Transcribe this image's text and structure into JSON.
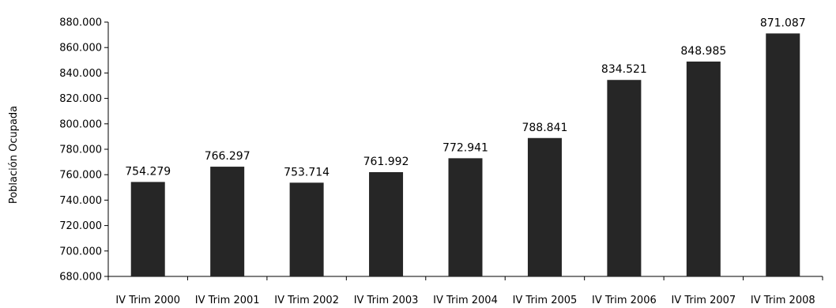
{
  "chart_data": {
    "type": "bar",
    "title": "",
    "xlabel": "",
    "ylabel": "Población Ocupada",
    "ylim": [
      680000,
      880000
    ],
    "ytick_values": [
      680000,
      700000,
      720000,
      740000,
      760000,
      780000,
      800000,
      820000,
      840000,
      860000,
      880000
    ],
    "ytick_labels": [
      "680.000",
      "700.000",
      "720.000",
      "740.000",
      "760.000",
      "780.000",
      "800.000",
      "820.000",
      "840.000",
      "860.000",
      "880.000"
    ],
    "grid": false,
    "legend": "none",
    "categories": [
      "IV Trim 2000",
      "IV Trim 2001",
      "IV Trim 2002",
      "IV Trim 2003",
      "IV Trim 2004",
      "IV Trim 2005",
      "IV Trim 2006",
      "IV Trim 2007",
      "IV Trim 2008"
    ],
    "values": [
      754279,
      766297,
      753714,
      761992,
      772941,
      788841,
      834521,
      848985,
      871087
    ],
    "value_labels": [
      "754.279",
      "766.297",
      "753.714",
      "761.992",
      "772.941",
      "788.841",
      "834.521",
      "848.985",
      "871.087"
    ],
    "bar_color": "#262626"
  }
}
